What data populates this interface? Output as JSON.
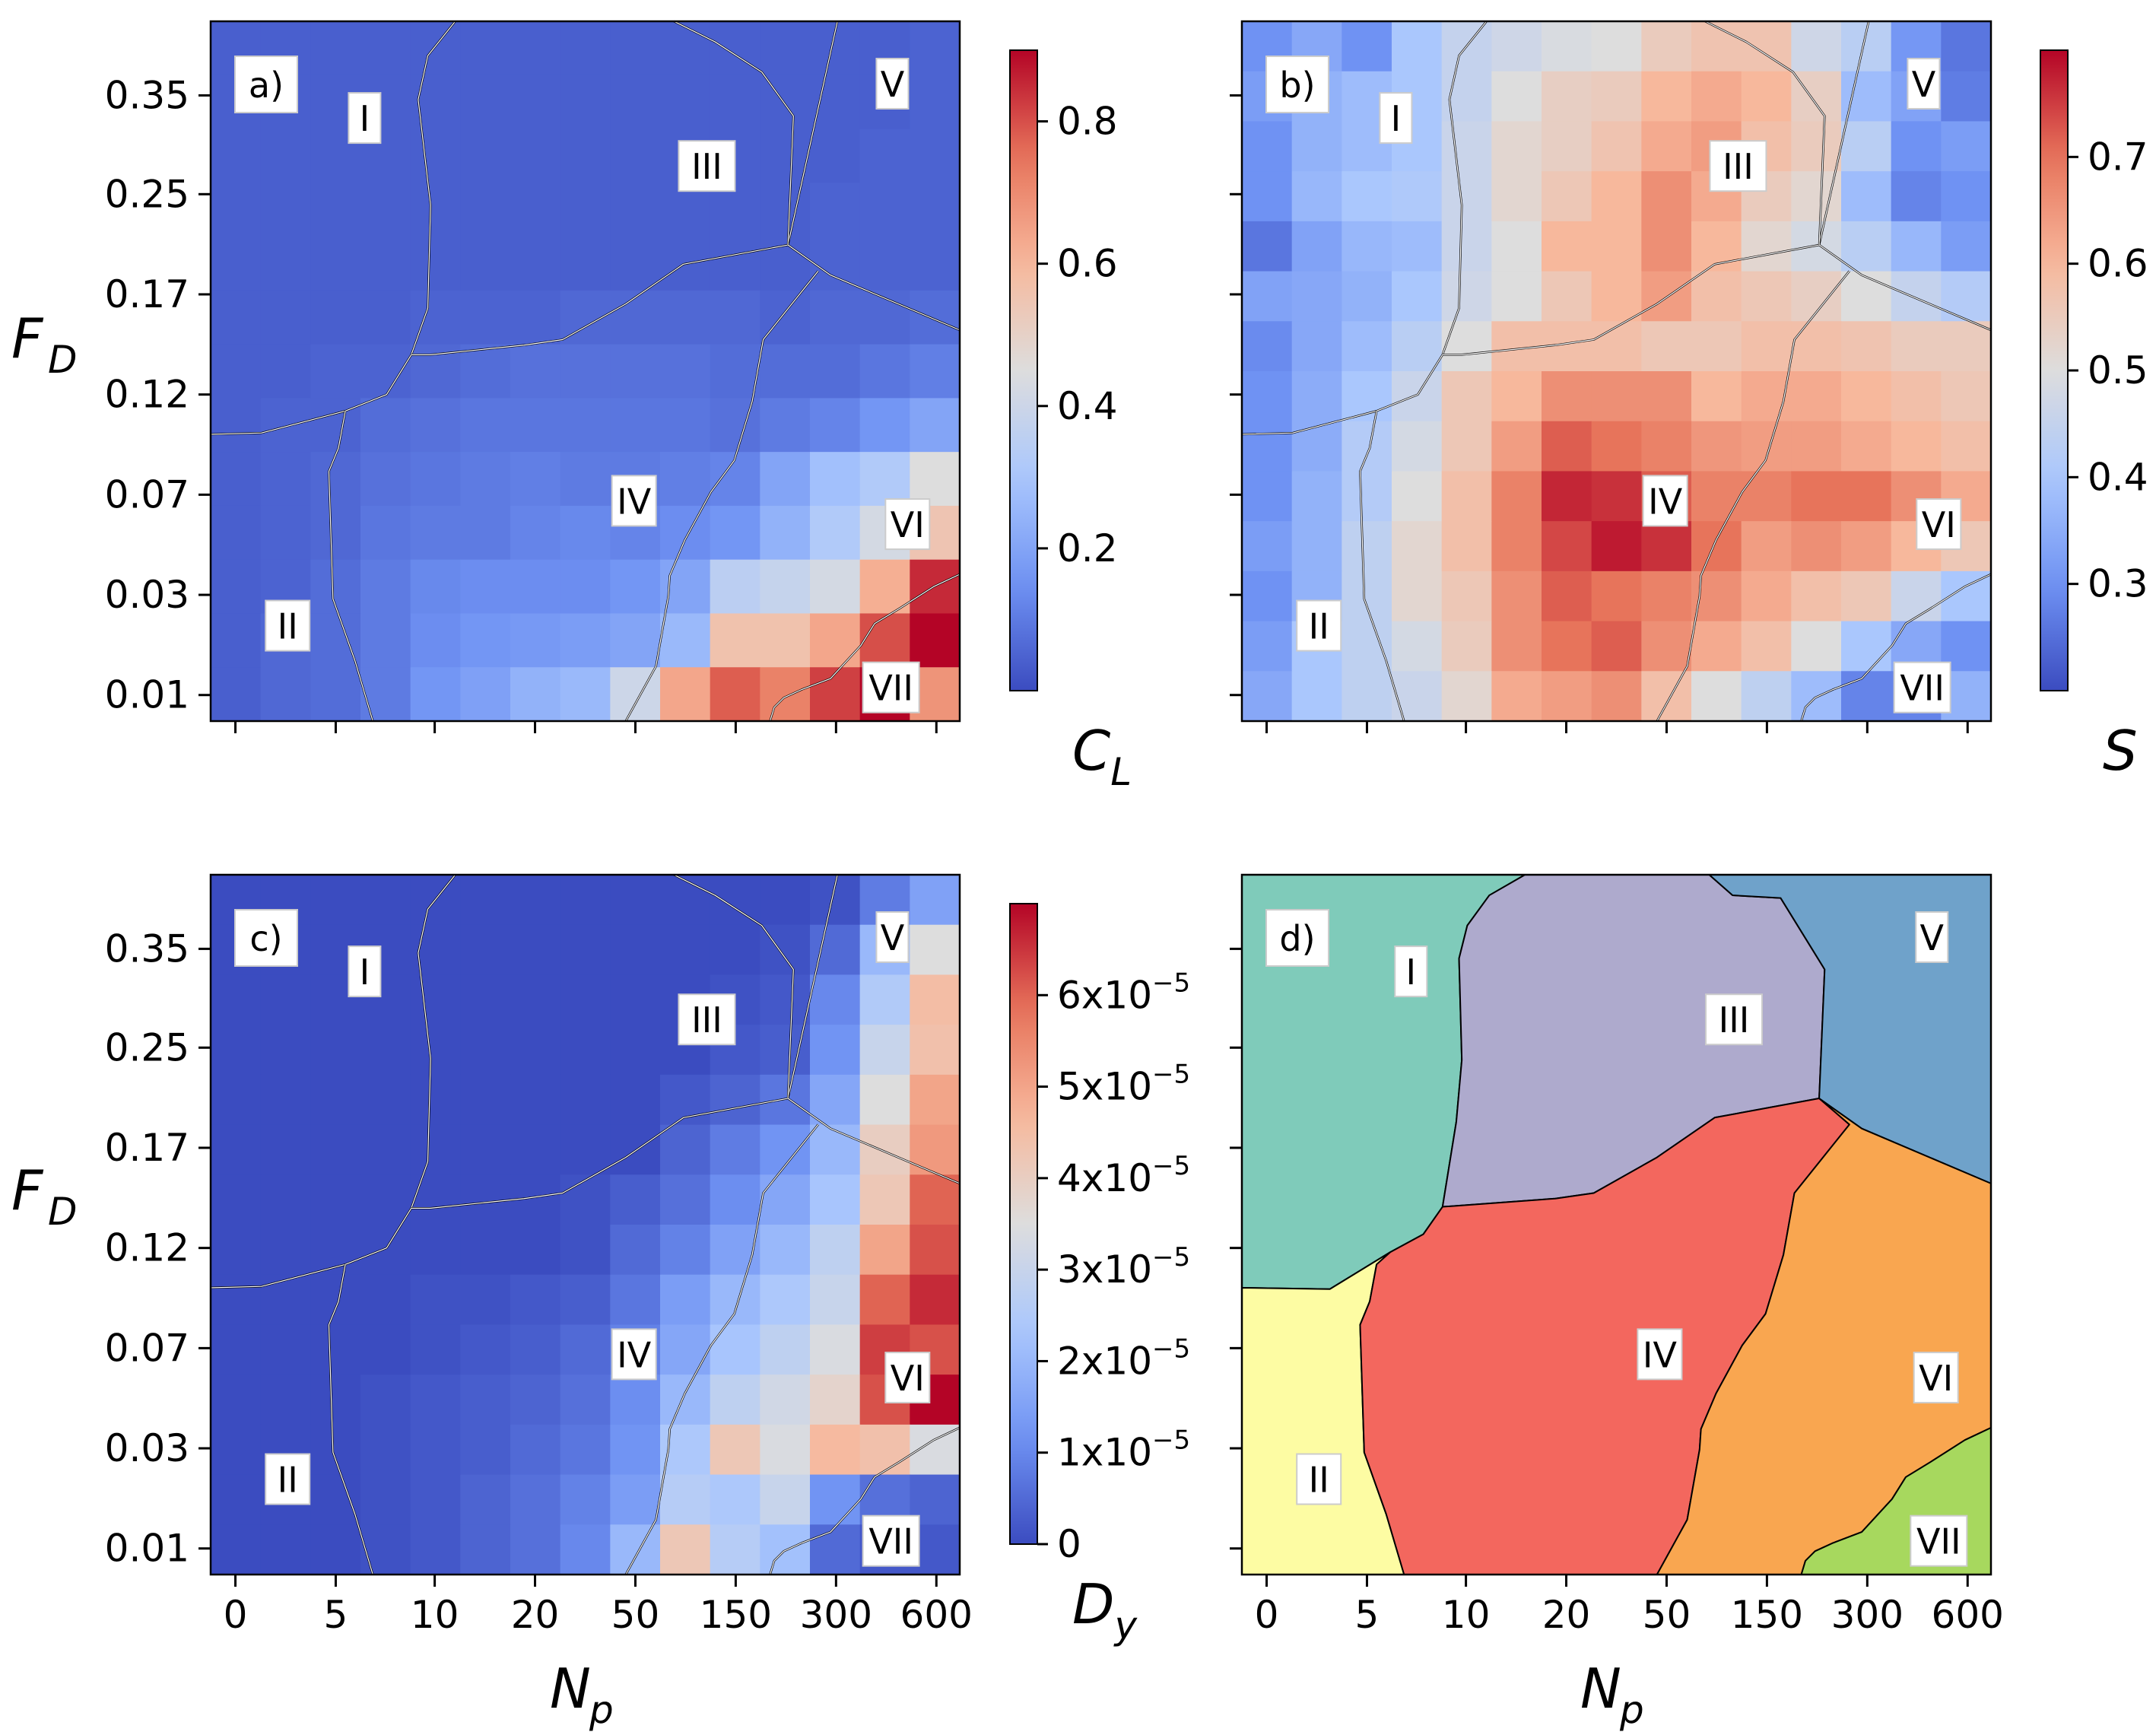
{
  "figure": {
    "x_label": "N",
    "x_label_sub": "p",
    "y_label": "F",
    "y_label_sub": "D",
    "x_tick_labels": [
      "0",
      "5",
      "10",
      "20",
      "50",
      "150",
      "300",
      "600"
    ],
    "y_tick_labels": [
      "0.35",
      "0.25",
      "0.17",
      "0.12",
      "0.07",
      "0.03",
      "0.01"
    ],
    "region_labels": [
      "I",
      "II",
      "III",
      "IV",
      "V",
      "VI",
      "VII"
    ]
  },
  "colors": {
    "coolwarm_low": "#3b4cc0",
    "coolwarm_mid": "#dddddd",
    "coolwarm_high": "#b40426",
    "boundary_line": "#ffffff",
    "boundary_edge": "#000000",
    "phase_I": "#7fcbba",
    "phase_II": "#fdfca3",
    "phase_III": "#aeaacd",
    "phase_IV": "#f3675e",
    "phase_V": "#6fa2ca",
    "phase_VI": "#f9a650",
    "phase_VII": "#a7d85e"
  },
  "chart_data": [
    {
      "type": "heatmap",
      "panel_label": "a)",
      "colorbar_label": "C",
      "colorbar_label_sub": "L",
      "colorbar_range": [
        0.0,
        0.9
      ],
      "colorbar_tick_values": [
        0.2,
        0.4,
        0.6,
        0.8
      ],
      "colorbar_tick_labels": [
        "0.2",
        "0.4",
        "0.6",
        "0.8"
      ],
      "values": [
        [
          0.04,
          0.04,
          0.04,
          0.04,
          0.04,
          0.04,
          0.04,
          0.04,
          0.04,
          0.04,
          0.04,
          0.04,
          0.04,
          0.04,
          0.05
        ],
        [
          0.04,
          0.04,
          0.04,
          0.04,
          0.04,
          0.04,
          0.04,
          0.04,
          0.04,
          0.04,
          0.04,
          0.04,
          0.04,
          0.04,
          0.05
        ],
        [
          0.04,
          0.04,
          0.04,
          0.04,
          0.04,
          0.04,
          0.04,
          0.04,
          0.04,
          0.04,
          0.04,
          0.04,
          0.04,
          0.05,
          0.05
        ],
        [
          0.04,
          0.04,
          0.04,
          0.04,
          0.04,
          0.04,
          0.04,
          0.04,
          0.04,
          0.04,
          0.04,
          0.04,
          0.05,
          0.05,
          0.05
        ],
        [
          0.04,
          0.04,
          0.04,
          0.04,
          0.04,
          0.04,
          0.04,
          0.04,
          0.04,
          0.04,
          0.04,
          0.04,
          0.05,
          0.05,
          0.05
        ],
        [
          0.04,
          0.04,
          0.04,
          0.04,
          0.05,
          0.05,
          0.05,
          0.06,
          0.06,
          0.06,
          0.06,
          0.05,
          0.06,
          0.06,
          0.07
        ],
        [
          0.04,
          0.04,
          0.05,
          0.05,
          0.06,
          0.07,
          0.08,
          0.08,
          0.08,
          0.08,
          0.07,
          0.07,
          0.07,
          0.09,
          0.11
        ],
        [
          0.04,
          0.05,
          0.05,
          0.07,
          0.08,
          0.09,
          0.09,
          0.09,
          0.09,
          0.09,
          0.08,
          0.1,
          0.12,
          0.16,
          0.2
        ],
        [
          0.04,
          0.05,
          0.06,
          0.08,
          0.09,
          0.1,
          0.11,
          0.1,
          0.1,
          0.11,
          0.12,
          0.2,
          0.28,
          0.32,
          0.45
        ],
        [
          0.04,
          0.05,
          0.06,
          0.09,
          0.1,
          0.1,
          0.12,
          0.13,
          0.12,
          0.14,
          0.16,
          0.24,
          0.32,
          0.42,
          0.55
        ],
        [
          0.04,
          0.05,
          0.07,
          0.1,
          0.13,
          0.14,
          0.14,
          0.14,
          0.16,
          0.2,
          0.35,
          0.38,
          0.42,
          0.62,
          0.85
        ],
        [
          0.04,
          0.06,
          0.07,
          0.1,
          0.14,
          0.16,
          0.17,
          0.18,
          0.2,
          0.26,
          0.56,
          0.56,
          0.64,
          0.8,
          0.9
        ],
        [
          0.04,
          0.06,
          0.07,
          0.1,
          0.16,
          0.19,
          0.24,
          0.26,
          0.4,
          0.64,
          0.78,
          0.72,
          0.82,
          0.9,
          0.68
        ]
      ]
    },
    {
      "type": "heatmap",
      "panel_label": "b)",
      "colorbar_label": "S",
      "colorbar_label_sub": "",
      "colorbar_range": [
        0.2,
        0.8
      ],
      "colorbar_tick_values": [
        0.3,
        0.4,
        0.5,
        0.6,
        0.7
      ],
      "colorbar_tick_labels": [
        "0.3",
        "0.4",
        "0.5",
        "0.6",
        "0.7"
      ],
      "values": [
        [
          0.3,
          0.34,
          0.3,
          0.4,
          0.45,
          0.47,
          0.49,
          0.5,
          0.55,
          0.57,
          0.57,
          0.47,
          0.43,
          0.31,
          0.26
        ],
        [
          0.32,
          0.36,
          0.38,
          0.4,
          0.45,
          0.5,
          0.54,
          0.55,
          0.6,
          0.62,
          0.6,
          0.54,
          0.38,
          0.33,
          0.27
        ],
        [
          0.3,
          0.36,
          0.38,
          0.4,
          0.46,
          0.52,
          0.54,
          0.57,
          0.62,
          0.64,
          0.58,
          0.55,
          0.43,
          0.3,
          0.32
        ],
        [
          0.3,
          0.37,
          0.4,
          0.41,
          0.46,
          0.52,
          0.56,
          0.6,
          0.66,
          0.62,
          0.55,
          0.52,
          0.38,
          0.28,
          0.3
        ],
        [
          0.26,
          0.33,
          0.37,
          0.38,
          0.46,
          0.5,
          0.6,
          0.6,
          0.66,
          0.6,
          0.52,
          0.48,
          0.43,
          0.37,
          0.32
        ],
        [
          0.33,
          0.34,
          0.36,
          0.4,
          0.47,
          0.5,
          0.56,
          0.6,
          0.64,
          0.58,
          0.56,
          0.54,
          0.5,
          0.45,
          0.42
        ],
        [
          0.29,
          0.34,
          0.38,
          0.43,
          0.5,
          0.58,
          0.58,
          0.58,
          0.56,
          0.56,
          0.58,
          0.58,
          0.57,
          0.55,
          0.55
        ],
        [
          0.3,
          0.35,
          0.4,
          0.46,
          0.56,
          0.6,
          0.66,
          0.66,
          0.66,
          0.6,
          0.62,
          0.62,
          0.6,
          0.58,
          0.56
        ],
        [
          0.3,
          0.35,
          0.42,
          0.48,
          0.56,
          0.64,
          0.72,
          0.7,
          0.68,
          0.65,
          0.64,
          0.64,
          0.62,
          0.6,
          0.58
        ],
        [
          0.3,
          0.36,
          0.42,
          0.5,
          0.58,
          0.68,
          0.77,
          0.76,
          0.72,
          0.68,
          0.68,
          0.7,
          0.7,
          0.66,
          0.62
        ],
        [
          0.32,
          0.36,
          0.44,
          0.52,
          0.58,
          0.68,
          0.74,
          0.78,
          0.76,
          0.7,
          0.64,
          0.66,
          0.64,
          0.6,
          0.56
        ],
        [
          0.3,
          0.36,
          0.44,
          0.52,
          0.56,
          0.66,
          0.72,
          0.7,
          0.68,
          0.66,
          0.62,
          0.58,
          0.56,
          0.46,
          0.4
        ],
        [
          0.32,
          0.4,
          0.44,
          0.48,
          0.55,
          0.66,
          0.7,
          0.72,
          0.66,
          0.62,
          0.58,
          0.5,
          0.4,
          0.34,
          0.3
        ],
        [
          0.34,
          0.4,
          0.44,
          0.46,
          0.52,
          0.62,
          0.64,
          0.66,
          0.58,
          0.5,
          0.44,
          0.38,
          0.28,
          0.28,
          0.36
        ]
      ]
    },
    {
      "type": "heatmap",
      "panel_label": "c)",
      "colorbar_label": "D",
      "colorbar_label_sub": "y",
      "colorbar_range": [
        0.0,
        7e-05
      ],
      "colorbar_tick_values": [
        0,
        1e-05,
        2e-05,
        3e-05,
        4e-05,
        5e-05,
        6e-05
      ],
      "colorbar_tick_labels": [
        "0",
        "1x10",
        "2x10",
        "3x10",
        "4x10",
        "5x10",
        "6x10"
      ],
      "colorbar_tick_exponent": "−5",
      "values": [
        [
          0.0,
          0.0,
          0.0,
          0.0,
          0.0,
          0.0,
          0.0,
          0.0,
          0.0,
          0.0,
          0.0,
          0.0,
          1e-06,
          8e-06,
          1.5e-05
        ],
        [
          0.0,
          0.0,
          0.0,
          0.0,
          0.0,
          0.0,
          0.0,
          0.0,
          0.0,
          0.0,
          0.0,
          1e-06,
          5e-06,
          2e-05,
          3.5e-05
        ],
        [
          0.0,
          0.0,
          0.0,
          0.0,
          0.0,
          0.0,
          0.0,
          0.0,
          0.0,
          0.0,
          1e-06,
          2e-06,
          1e-05,
          2.5e-05,
          4.5e-05
        ],
        [
          0.0,
          0.0,
          0.0,
          0.0,
          0.0,
          0.0,
          0.0,
          0.0,
          0.0,
          0.0,
          2e-06,
          3e-06,
          1.2e-05,
          3e-05,
          4.4e-05
        ],
        [
          0.0,
          0.0,
          0.0,
          0.0,
          0.0,
          0.0,
          0.0,
          0.0,
          0.0,
          2e-06,
          4e-06,
          7e-06,
          1.6e-05,
          3.5e-05,
          5e-05
        ],
        [
          0.0,
          0.0,
          0.0,
          0.0,
          0.0,
          0.0,
          0.0,
          0.0,
          0.0,
          4e-06,
          8e-06,
          1.2e-05,
          2e-05,
          4e-05,
          5.2e-05
        ],
        [
          0.0,
          0.0,
          0.0,
          0.0,
          0.0,
          0.0,
          0.0,
          1e-06,
          3e-06,
          6e-06,
          1.1e-05,
          1.6e-05,
          2.3e-05,
          4.2e-05,
          6e-05
        ],
        [
          0.0,
          0.0,
          0.0,
          0.0,
          0.0,
          0.0,
          0.0,
          1e-06,
          5e-06,
          9e-06,
          1.5e-05,
          2e-05,
          2.8e-05,
          5e-05,
          6.2e-05
        ],
        [
          0.0,
          0.0,
          0.0,
          0.0,
          1e-06,
          1e-06,
          2e-06,
          3e-06,
          7e-06,
          1.4e-05,
          2e-05,
          2.4e-05,
          3e-05,
          6e-05,
          6.6e-05
        ],
        [
          0.0,
          0.0,
          0.0,
          0.0,
          1e-06,
          2e-06,
          3e-06,
          5e-06,
          9e-06,
          1.6e-05,
          2.3e-05,
          2.8e-05,
          3.4e-05,
          6.4e-05,
          6.2e-05
        ],
        [
          0.0,
          0.0,
          0.0,
          1e-06,
          2e-06,
          3e-06,
          4e-06,
          6e-06,
          1.1e-05,
          2e-05,
          2.8e-05,
          3.2e-05,
          3.8e-05,
          6.2e-05,
          7e-05
        ],
        [
          0.0,
          0.0,
          0.0,
          1e-06,
          2e-06,
          3e-06,
          5e-06,
          7e-06,
          1.2e-05,
          2.4e-05,
          4.2e-05,
          3.4e-05,
          4.6e-05,
          4.4e-05,
          3.4e-05
        ],
        [
          0.0,
          0.0,
          0.0,
          1e-06,
          2e-06,
          4e-06,
          6e-06,
          9e-06,
          1.4e-05,
          2.6e-05,
          2.4e-05,
          3e-05,
          1.2e-05,
          6e-06,
          4e-06
        ],
        [
          0.0,
          0.0,
          0.0,
          1e-06,
          2e-06,
          4e-06,
          6e-06,
          1e-05,
          2e-05,
          4.2e-05,
          2.6e-05,
          2.2e-05,
          5e-06,
          2e-06,
          2e-06
        ]
      ]
    },
    {
      "type": "phase_map",
      "panel_label": "d)",
      "regions": [
        "I",
        "II",
        "III",
        "IV",
        "V",
        "VI",
        "VII"
      ]
    }
  ]
}
